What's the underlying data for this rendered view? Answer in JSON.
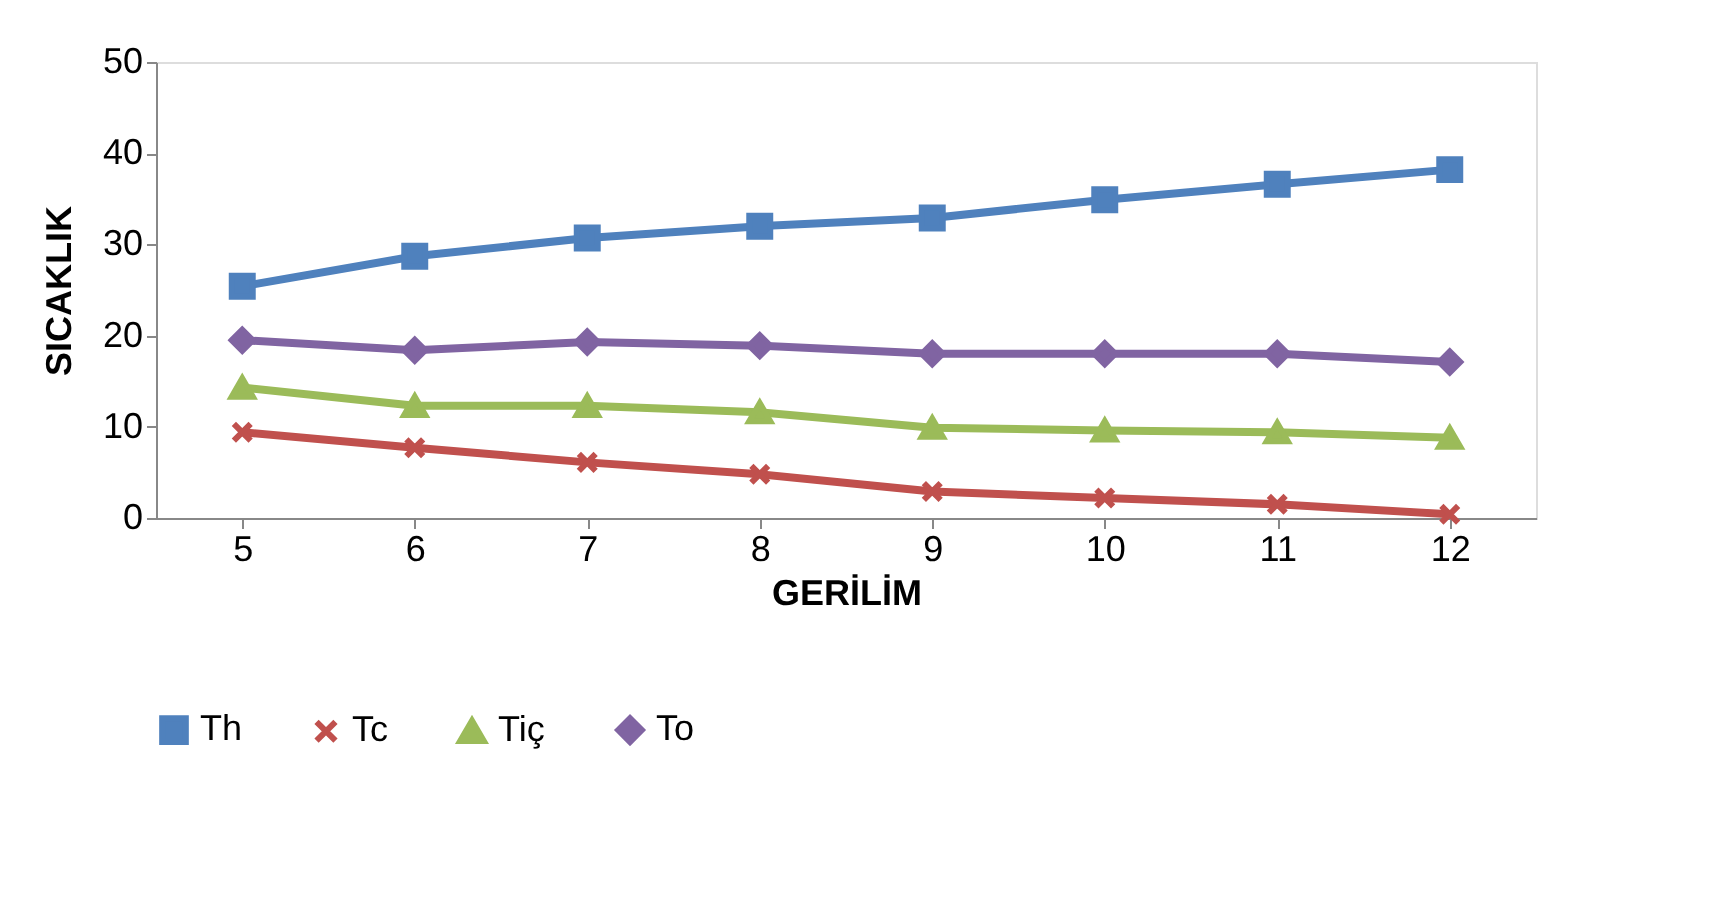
{
  "chart_data": {
    "type": "line",
    "xlabel": "GERİLİM",
    "ylabel": "SICAKLIK",
    "categories": [
      "5",
      "6",
      "7",
      "8",
      "9",
      "10",
      "11",
      "12"
    ],
    "series": [
      {
        "name": "Th",
        "color": "#4f81bd",
        "marker": "square",
        "values": [
          25.4,
          28.7,
          30.7,
          32.0,
          32.9,
          34.9,
          36.6,
          38.2
        ]
      },
      {
        "name": "Tc",
        "color": "#c0504d",
        "marker": "cross",
        "values": [
          9.4,
          7.7,
          6.1,
          4.8,
          2.9,
          2.2,
          1.5,
          0.4
        ]
      },
      {
        "name": "Tiç",
        "color": "#9bbb59",
        "marker": "triangle",
        "values": [
          14.3,
          12.3,
          12.3,
          11.6,
          9.9,
          9.6,
          9.4,
          8.8
        ]
      },
      {
        "name": "To",
        "color": "#8064a2",
        "marker": "diamond",
        "values": [
          19.5,
          18.4,
          19.3,
          18.9,
          18.0,
          18.0,
          18.0,
          17.1
        ]
      }
    ],
    "ylim": [
      0,
      50
    ],
    "yticks": [
      0,
      10,
      20,
      30,
      40,
      50
    ],
    "grid": false,
    "legend": "bottom"
  }
}
